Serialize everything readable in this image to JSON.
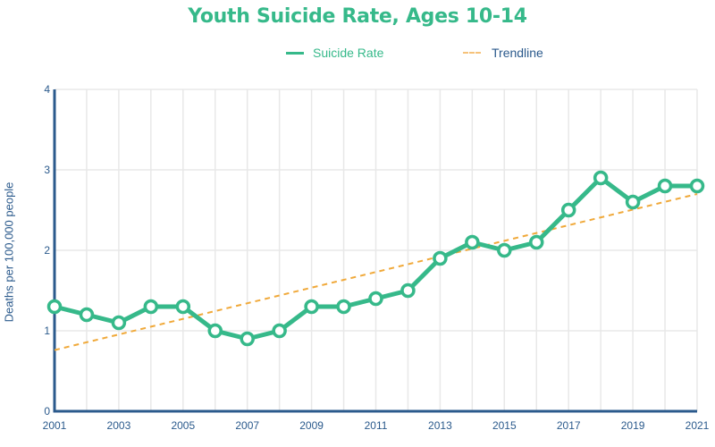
{
  "chart_data": {
    "type": "line",
    "title": "Youth Suicide Rate, Ages 10-14",
    "xlabel": "",
    "ylabel": "Deaths per 100,000 people",
    "xlim": [
      2001,
      2021
    ],
    "ylim": [
      0,
      4
    ],
    "grid": true,
    "legend_position": "top-center",
    "x_ticks": [
      "2001",
      "2003",
      "2005",
      "2007",
      "2009",
      "2011",
      "2013",
      "2015",
      "2017",
      "2019",
      "2021"
    ],
    "y_ticks": [
      "0",
      "1",
      "2",
      "3",
      "4"
    ],
    "x": [
      2001,
      2002,
      2003,
      2004,
      2005,
      2006,
      2007,
      2008,
      2009,
      2010,
      2011,
      2012,
      2013,
      2014,
      2015,
      2016,
      2017,
      2018,
      2019,
      2020,
      2021
    ],
    "series": [
      {
        "name": "Suicide Rate",
        "style": "solid-with-markers",
        "color": "#36b98a",
        "values": [
          1.3,
          1.2,
          1.1,
          1.3,
          1.3,
          1.0,
          0.9,
          1.0,
          1.3,
          1.3,
          1.4,
          1.5,
          1.9,
          2.1,
          2.0,
          2.1,
          2.5,
          2.9,
          2.6,
          2.8,
          2.8
        ]
      },
      {
        "name": "Trendline",
        "style": "dashed",
        "color": "#f0a93a",
        "x": [
          2001,
          2021
        ],
        "values": [
          0.76,
          2.7
        ]
      }
    ]
  },
  "colors": {
    "title": "#36b98a",
    "axis": "#2b5a8c",
    "grid": "#e8e8e8"
  }
}
